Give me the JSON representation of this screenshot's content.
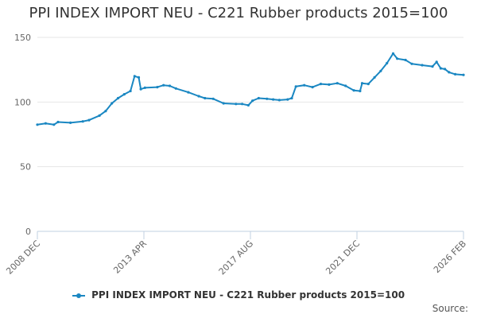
{
  "chart_data": {
    "type": "line",
    "title": "PPI INDEX IMPORT NEU - C221 Rubber products 2015=100",
    "xlabel": "",
    "ylabel": "",
    "ylim": [
      0,
      150
    ],
    "yticks": [
      0,
      50,
      100,
      150
    ],
    "x_tick_labels": [
      "2008 DEC",
      "2013 APR",
      "2017 AUG",
      "2021 DEC",
      "2026 FEB"
    ],
    "grid": true,
    "legend_position": "bottom",
    "series": [
      {
        "name": "PPI INDEX IMPORT NEU - C221 Rubber products 2015=100",
        "color": "#1a87c2",
        "points": [
          [
            "2008-12",
            82.5
          ],
          [
            "2009-04",
            83.5
          ],
          [
            "2009-08",
            82.5
          ],
          [
            "2009-10",
            84.5
          ],
          [
            "2010-04",
            84.0
          ],
          [
            "2010-10",
            85.0
          ],
          [
            "2011-01",
            86.0
          ],
          [
            "2011-06",
            89.5
          ],
          [
            "2011-09",
            93.0
          ],
          [
            "2011-12",
            99.0
          ],
          [
            "2012-03",
            103.0
          ],
          [
            "2012-06",
            106.0
          ],
          [
            "2012-09",
            108.5
          ],
          [
            "2012-11",
            120.0
          ],
          [
            "2013-01",
            119.0
          ],
          [
            "2013-02",
            110.0
          ],
          [
            "2013-04",
            111.0
          ],
          [
            "2013-10",
            111.5
          ],
          [
            "2014-01",
            113.0
          ],
          [
            "2014-04",
            112.5
          ],
          [
            "2014-07",
            110.5
          ],
          [
            "2015-01",
            107.5
          ],
          [
            "2015-06",
            104.5
          ],
          [
            "2015-09",
            103.0
          ],
          [
            "2016-01",
            102.5
          ],
          [
            "2016-06",
            99.0
          ],
          [
            "2016-12",
            98.5
          ],
          [
            "2017-03",
            98.5
          ],
          [
            "2017-06",
            97.5
          ],
          [
            "2017-08",
            101.0
          ],
          [
            "2017-11",
            103.0
          ],
          [
            "2018-03",
            102.5
          ],
          [
            "2018-06",
            102.0
          ],
          [
            "2018-09",
            101.5
          ],
          [
            "2019-01",
            102.0
          ],
          [
            "2019-03",
            103.0
          ],
          [
            "2019-05",
            112.0
          ],
          [
            "2019-09",
            113.0
          ],
          [
            "2020-01",
            111.5
          ],
          [
            "2020-05",
            114.0
          ],
          [
            "2020-09",
            113.5
          ],
          [
            "2021-01",
            114.5
          ],
          [
            "2021-05",
            112.5
          ],
          [
            "2021-09",
            109.0
          ],
          [
            "2021-12",
            108.5
          ],
          [
            "2022-01",
            114.5
          ],
          [
            "2022-04",
            114.0
          ],
          [
            "2022-07",
            119.0
          ],
          [
            "2022-10",
            124.0
          ],
          [
            "2023-01",
            130.0
          ],
          [
            "2023-04",
            137.5
          ],
          [
            "2023-06",
            133.5
          ],
          [
            "2023-10",
            132.5
          ],
          [
            "2024-01",
            129.5
          ],
          [
            "2024-06",
            128.5
          ],
          [
            "2024-11",
            127.5
          ],
          [
            "2025-01",
            131.0
          ],
          [
            "2025-03",
            126.0
          ],
          [
            "2025-05",
            125.5
          ],
          [
            "2025-07",
            123.0
          ],
          [
            "2025-10",
            121.5
          ],
          [
            "2026-02",
            121.0
          ]
        ]
      }
    ],
    "source_label": "Source:"
  }
}
